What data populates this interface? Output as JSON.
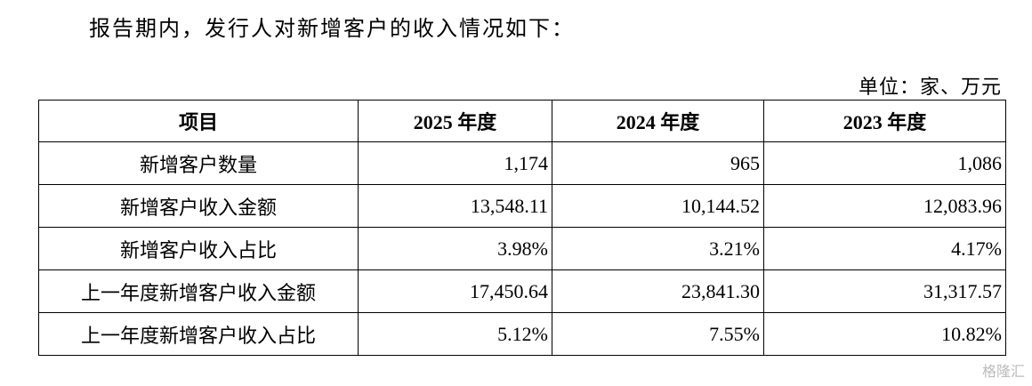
{
  "intro": "报告期内，发行人对新增客户的收入情况如下：",
  "unit": "单位：家、万元",
  "table": {
    "header": [
      "项目",
      "2025 年度",
      "2024 年度",
      "2023 年度"
    ],
    "rows": [
      [
        "新增客户数量",
        "1,174",
        "965",
        "1,086"
      ],
      [
        "新增客户收入金额",
        "13,548.11",
        "10,144.52",
        "12,083.96"
      ],
      [
        "新增客户收入占比",
        "3.98%",
        "3.21%",
        "4.17%"
      ],
      [
        "上一年度新增客户收入金额",
        "17,450.64",
        "23,841.30",
        "31,317.57"
      ],
      [
        "上一年度新增客户收入占比",
        "5.12%",
        "7.55%",
        "10.82%"
      ]
    ]
  },
  "watermark": "格隆汇"
}
